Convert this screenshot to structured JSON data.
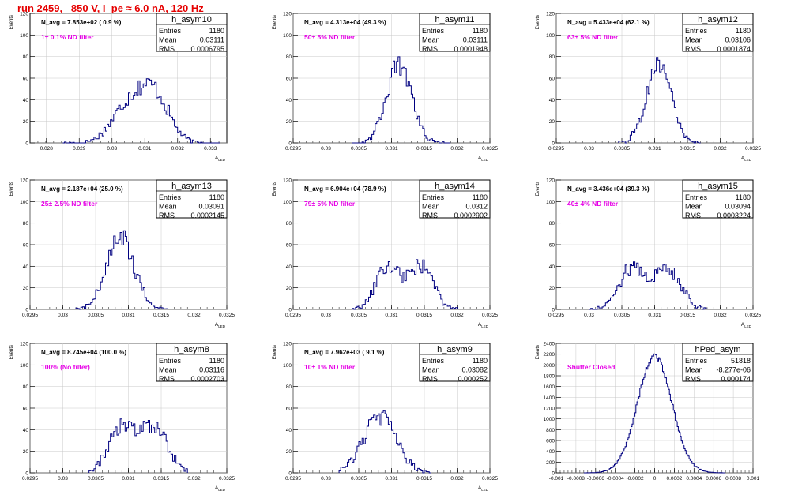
{
  "run_title": "run 2459,   850 V, I_pe ≈ 6.0 nA, 120 Hz",
  "colors": {
    "title": "#e60000",
    "note": "#e600e6",
    "hist": "#000080",
    "frame": "#000000",
    "grid": "#c8c8c8"
  },
  "chart_data": [
    {
      "type": "histogram",
      "title": "h_asym10",
      "ylabel": "Events",
      "xlabel": "A_LED",
      "xlim": [
        0.0275,
        0.0335
      ],
      "ylim": [
        0,
        120
      ],
      "xticks": [
        "0.028",
        "0.029",
        "0.03",
        "0.031",
        "0.032",
        "0.033"
      ],
      "yticks": [
        "0",
        "20",
        "40",
        "60",
        "80",
        "100",
        "120"
      ],
      "grid": true,
      "stats_position": "top-right",
      "stats": {
        "entries": "1180",
        "mean": "0.03111",
        "rms": "0.0006795"
      },
      "n_avg": "N_avg = 7.853e+02 ( 0.9 %)",
      "note": "1± 0.1% ND filter",
      "curve": {
        "kind": "double",
        "peaks": [
          [
            0.0305,
            34,
            0.0005
          ],
          [
            0.0313,
            42,
            0.00045
          ]
        ],
        "range": [
          0.0285,
          0.0333
        ],
        "nbins": 96
      }
    },
    {
      "type": "histogram",
      "title": "h_asym11",
      "ylabel": "Events",
      "xlabel": "A_LED",
      "xlim": [
        0.0295,
        0.0325
      ],
      "ylim": [
        0,
        120
      ],
      "xticks": [
        "0.0295",
        "0.03",
        "0.0305",
        "0.031",
        "0.0315",
        "0.032",
        "0.0325"
      ],
      "yticks": [
        "0",
        "20",
        "40",
        "60",
        "80",
        "100",
        "120"
      ],
      "grid": true,
      "stats_position": "top-right",
      "stats": {
        "entries": "1180",
        "mean": "0.03111",
        "rms": "0.0001948"
      },
      "n_avg": "N_avg = 4.313e+04 (49.3 %)",
      "note": "50± 5% ND filter",
      "curve": {
        "kind": "single",
        "peaks": [
          [
            0.03111,
            72,
            0.00019
          ]
        ],
        "range": [
          0.0304,
          0.0319
        ],
        "nbins": 60
      }
    },
    {
      "type": "histogram",
      "title": "h_asym12",
      "ylabel": "Events",
      "xlabel": "A_LED",
      "xlim": [
        0.0295,
        0.0325
      ],
      "ylim": [
        0,
        120
      ],
      "xticks": [
        "0.0295",
        "0.03",
        "0.0305",
        "0.031",
        "0.0315",
        "0.032",
        "0.0325"
      ],
      "yticks": [
        "0",
        "20",
        "40",
        "60",
        "80",
        "100",
        "120"
      ],
      "grid": true,
      "stats_position": "top-right",
      "stats": {
        "entries": "1180",
        "mean": "0.03106",
        "rms": "0.0001874"
      },
      "n_avg": "N_avg = 5.433e+04 (62.1 %)",
      "note": "63± 5% ND filter",
      "curve": {
        "kind": "single",
        "peaks": [
          [
            0.03106,
            74,
            0.000185
          ]
        ],
        "range": [
          0.03045,
          0.0317
        ],
        "nbins": 50
      }
    },
    {
      "type": "histogram",
      "title": "h_asym13",
      "ylabel": "Events",
      "xlabel": "A_LED",
      "xlim": [
        0.0295,
        0.0325
      ],
      "ylim": [
        0,
        120
      ],
      "xticks": [
        "0.0295",
        "0.03",
        "0.0305",
        "0.031",
        "0.0315",
        "0.032",
        "0.0325"
      ],
      "yticks": [
        "0",
        "20",
        "40",
        "60",
        "80",
        "100",
        "120"
      ],
      "grid": true,
      "stats_position": "top-right",
      "stats": {
        "entries": "1180",
        "mean": "0.03091",
        "rms": "0.0002145"
      },
      "n_avg": "N_avg = 2.187e+04 (25.0 %)",
      "note": "25± 2.5% ND filter",
      "curve": {
        "kind": "single",
        "peaks": [
          [
            0.03088,
            66,
            0.00021
          ]
        ],
        "range": [
          0.0302,
          0.0316
        ],
        "nbins": 56
      }
    },
    {
      "type": "histogram",
      "title": "h_asym14",
      "ylabel": "Events",
      "xlabel": "A_LED",
      "xlim": [
        0.0295,
        0.0325
      ],
      "ylim": [
        0,
        120
      ],
      "xticks": [
        "0.0295",
        "0.03",
        "0.0305",
        "0.031",
        "0.0315",
        "0.032",
        "0.0325"
      ],
      "yticks": [
        "0",
        "20",
        "40",
        "60",
        "80",
        "100",
        "120"
      ],
      "grid": true,
      "stats_position": "top-right",
      "stats": {
        "entries": "1180",
        "mean": "0.0312",
        "rms": "0.0002902"
      },
      "n_avg": "N_avg = 6.904e+04 (78.9 %)",
      "note": "79± 5% ND filter",
      "curve": {
        "kind": "double",
        "peaks": [
          [
            0.03095,
            40,
            0.00018
          ],
          [
            0.03145,
            40,
            0.00018
          ]
        ],
        "range": [
          0.0304,
          0.032
        ],
        "nbins": 64
      }
    },
    {
      "type": "histogram",
      "title": "h_asym15",
      "ylabel": "Events",
      "xlabel": "A_LED",
      "xlim": [
        0.0295,
        0.0325
      ],
      "ylim": [
        0,
        120
      ],
      "xticks": [
        "0.0295",
        "0.03",
        "0.0305",
        "0.031",
        "0.0315",
        "0.032",
        "0.0325"
      ],
      "yticks": [
        "0",
        "20",
        "40",
        "60",
        "80",
        "100",
        "120"
      ],
      "grid": true,
      "stats_position": "top-right",
      "stats": {
        "entries": "1180",
        "mean": "0.03094",
        "rms": "0.0003224"
      },
      "n_avg": "N_avg = 3.436e+04 (39.3 %)",
      "note": "40± 4% ND filter",
      "curve": {
        "kind": "double",
        "peaks": [
          [
            0.03065,
            38,
            0.0002
          ],
          [
            0.0312,
            38,
            0.0002
          ]
        ],
        "range": [
          0.03,
          0.0318
        ],
        "nbins": 72
      }
    },
    {
      "type": "histogram",
      "title": "h_asym8",
      "ylabel": "Events",
      "xlabel": "A_LED",
      "xlim": [
        0.0295,
        0.0325
      ],
      "ylim": [
        0,
        120
      ],
      "xticks": [
        "0.0295",
        "0.03",
        "0.0305",
        "0.031",
        "0.0315",
        "0.032",
        "0.0325"
      ],
      "yticks": [
        "0",
        "20",
        "40",
        "60",
        "80",
        "100",
        "120"
      ],
      "grid": true,
      "stats_position": "top-right",
      "stats": {
        "entries": "1180",
        "mean": "0.03116",
        "rms": "0.0002703"
      },
      "n_avg": "N_avg = 8.745e+04 (100.0 %)",
      "note": "100% (No filter)",
      "curve": {
        "kind": "double",
        "peaks": [
          [
            0.0309,
            42,
            0.0002
          ],
          [
            0.0314,
            42,
            0.0002
          ]
        ],
        "range": [
          0.0304,
          0.0319
        ],
        "nbins": 60
      }
    },
    {
      "type": "histogram",
      "title": "h_asym9",
      "ylabel": "Events",
      "xlabel": "A_LED",
      "xlim": [
        0.0295,
        0.0325
      ],
      "ylim": [
        0,
        120
      ],
      "xticks": [
        "0.0295",
        "0.03",
        "0.0305",
        "0.031",
        "0.0315",
        "0.032",
        "0.0325"
      ],
      "yticks": [
        "0",
        "20",
        "40",
        "60",
        "80",
        "100",
        "120"
      ],
      "grid": true,
      "stats_position": "top-right",
      "stats": {
        "entries": "1180",
        "mean": "0.03082",
        "rms": "0.000252"
      },
      "n_avg": "N_avg = 7.962e+03 ( 9.1 %)",
      "note": "10± 1% ND filter",
      "curve": {
        "kind": "single",
        "peaks": [
          [
            0.03082,
            52,
            0.00025
          ]
        ],
        "range": [
          0.0302,
          0.0316
        ],
        "nbins": 56
      }
    },
    {
      "type": "histogram",
      "title": "hPed_asym",
      "ylabel": "Events",
      "xlabel": "",
      "xlim": [
        -0.001,
        0.001
      ],
      "ylim": [
        0,
        2400
      ],
      "xticks": [
        "-0.001",
        "-0.0008",
        "-0.0006",
        "-0.0004",
        "-0.0002",
        "0",
        "0.0002",
        "0.0004",
        "0.0006",
        "0.0008",
        "0.001"
      ],
      "yticks": [
        "0",
        "200",
        "400",
        "600",
        "800",
        "1000",
        "1200",
        "1400",
        "1600",
        "1800",
        "2000",
        "2200",
        "2400"
      ],
      "grid": true,
      "stats_position": "top-right",
      "stats": {
        "entries": "51818",
        "mean": "-8.277e-06",
        "rms": "0.000174"
      },
      "n_avg": "",
      "note": "Shutter Closed",
      "curve": {
        "kind": "single",
        "peaks": [
          [
            0.0,
            2160,
            0.000174
          ]
        ],
        "range": [
          -0.00072,
          0.00072
        ],
        "nbins": 144
      }
    }
  ]
}
